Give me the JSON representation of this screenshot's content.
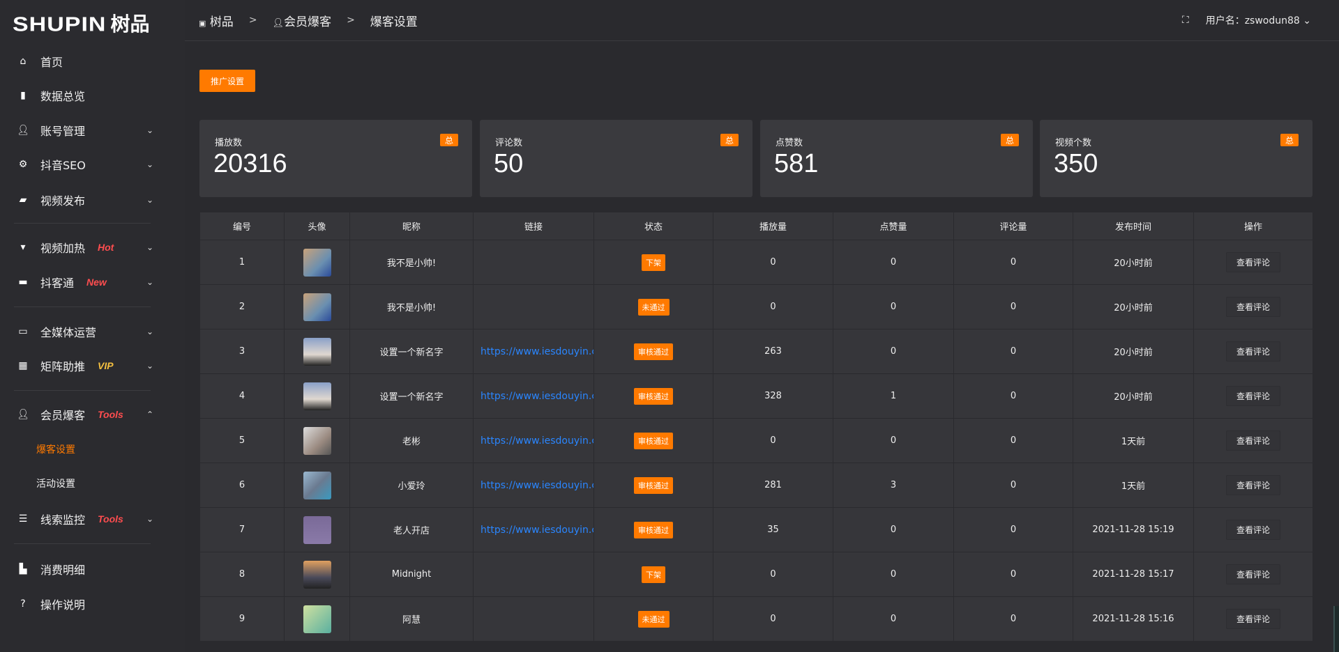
{
  "brand": {
    "logo_en": "SHUPIN",
    "logo_cn": "树品"
  },
  "colors": {
    "accent": "#ff7a00",
    "link": "#2a86ff",
    "tag_red": "#ff4d4f",
    "tag_vip": "#f5c040"
  },
  "sidebar": {
    "items": [
      {
        "label": "首页",
        "icon": "home-icon"
      },
      {
        "label": "数据总览",
        "icon": "bar-chart-icon"
      },
      {
        "label": "账号管理",
        "icon": "user-icon",
        "chevron": "down"
      },
      {
        "label": "抖音SEO",
        "icon": "gear-icon",
        "chevron": "down"
      },
      {
        "label": "视频发布",
        "icon": "camera-icon",
        "chevron": "down"
      },
      {
        "label": "视频加热",
        "icon": "sign-icon",
        "tag": "Hot",
        "chevron": "down"
      },
      {
        "label": "抖客通",
        "icon": "chat-icon",
        "tag": "New",
        "chevron": "down"
      },
      {
        "label": "全媒体运营",
        "icon": "monitor-icon",
        "chevron": "down"
      },
      {
        "label": "矩阵助推",
        "icon": "grid-icon",
        "tag": "VIP",
        "chevron": "down"
      },
      {
        "label": "会员爆客",
        "icon": "user-icon",
        "tag": "Tools",
        "chevron": "up"
      },
      {
        "label": "线索监控",
        "icon": "sliders-icon",
        "tag": "Tools",
        "chevron": "down"
      },
      {
        "label": "消费明细",
        "icon": "wallet-icon"
      },
      {
        "label": "操作说明",
        "icon": "help-icon"
      }
    ],
    "sub_items": [
      {
        "label": "爆客设置",
        "active": true
      },
      {
        "label": "活动设置"
      }
    ]
  },
  "header": {
    "breadcrumb": [
      "树品",
      "会员爆客",
      "爆客设置"
    ],
    "user_label": "用户名：zswodun88"
  },
  "toolbar": {
    "promo_settings": "推广设置"
  },
  "stats": [
    {
      "label": "播放数",
      "value": "20316",
      "badge": "总"
    },
    {
      "label": "评论数",
      "value": "50",
      "badge": "总"
    },
    {
      "label": "点赞数",
      "value": "581",
      "badge": "总"
    },
    {
      "label": "视频个数",
      "value": "350",
      "badge": "总"
    }
  ],
  "table": {
    "columns": [
      "编号",
      "头像",
      "昵称",
      "链接",
      "状态",
      "播放量",
      "点赞量",
      "评论量",
      "发布时间",
      "操作"
    ],
    "rows": [
      {
        "id": "1",
        "nickname": "我不是小帅!",
        "link": "",
        "status": "下架",
        "plays": "0",
        "likes": "0",
        "comments": "0",
        "time": "20小时前",
        "action": "查看评论"
      },
      {
        "id": "2",
        "nickname": "我不是小帅!",
        "link": "",
        "status": "未通过",
        "plays": "0",
        "likes": "0",
        "comments": "0",
        "time": "20小时前",
        "action": "查看评论"
      },
      {
        "id": "3",
        "nickname": "设置一个新名字",
        "link": "https://www.iesdouyin.c",
        "status": "审核通过",
        "plays": "263",
        "likes": "0",
        "comments": "0",
        "time": "20小时前",
        "action": "查看评论"
      },
      {
        "id": "4",
        "nickname": "设置一个新名字",
        "link": "https://www.iesdouyin.c",
        "status": "审核通过",
        "plays": "328",
        "likes": "1",
        "comments": "0",
        "time": "20小时前",
        "action": "查看评论"
      },
      {
        "id": "5",
        "nickname": "老彬",
        "link": "https://www.iesdouyin.c",
        "status": "审核通过",
        "plays": "0",
        "likes": "0",
        "comments": "0",
        "time": "1天前",
        "action": "查看评论"
      },
      {
        "id": "6",
        "nickname": "小爱玲",
        "link": "https://www.iesdouyin.c",
        "status": "审核通过",
        "plays": "281",
        "likes": "3",
        "comments": "0",
        "time": "1天前",
        "action": "查看评论"
      },
      {
        "id": "7",
        "nickname": "老人开店",
        "link": "https://www.iesdouyin.c",
        "status": "审核通过",
        "plays": "35",
        "likes": "0",
        "comments": "0",
        "time": "2021-11-28 15:19",
        "action": "查看评论"
      },
      {
        "id": "8",
        "nickname": "Midnight",
        "link": "",
        "status": "下架",
        "plays": "0",
        "likes": "0",
        "comments": "0",
        "time": "2021-11-28 15:17",
        "action": "查看评论"
      },
      {
        "id": "9",
        "nickname": "阿慧",
        "link": "",
        "status": "未通过",
        "plays": "0",
        "likes": "0",
        "comments": "0",
        "time": "2021-11-28 15:16",
        "action": "查看评论"
      }
    ]
  }
}
